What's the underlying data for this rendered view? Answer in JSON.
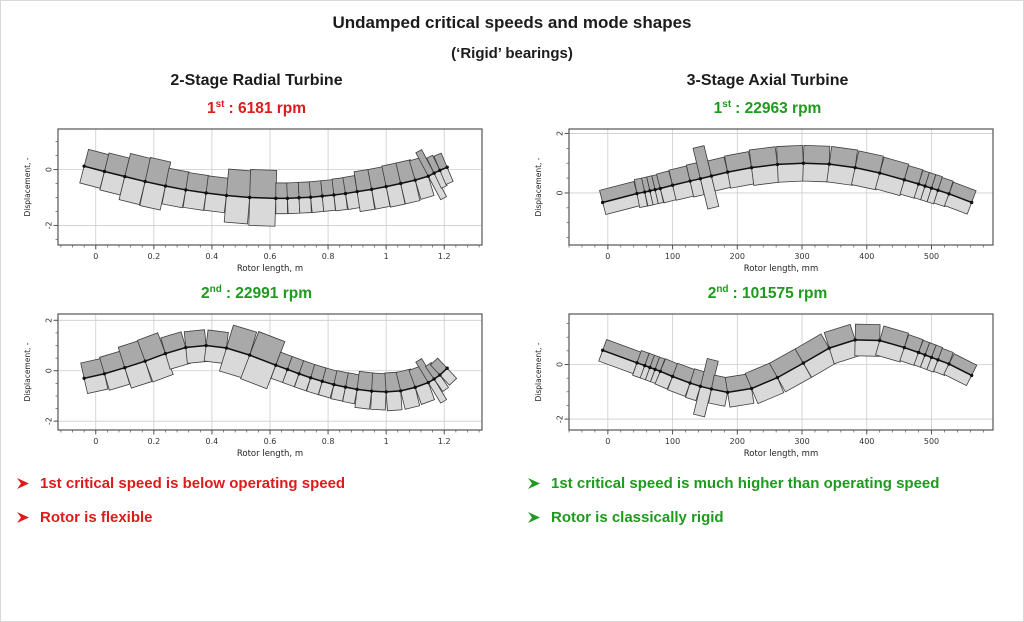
{
  "slide": {
    "title": "Undamped critical speeds and mode shapes",
    "subtitle": "(‘Rigid’ bearings)",
    "accent": {
      "red": "#DE1B1B",
      "green": "#1E9A1E"
    },
    "columns": [
      {
        "heading": "2-Stage Radial Turbine",
        "modes": [
          {
            "ordinal": "1",
            "suffix": "st",
            "text": ": 6181 rpm",
            "color": "red"
          },
          {
            "ordinal": "2",
            "suffix": "nd",
            "text": ": 22991 rpm",
            "color": "green"
          }
        ],
        "bullets": [
          "1st critical speed is below operating speed",
          "Rotor is flexible"
        ],
        "bullets_color": "red"
      },
      {
        "heading": "3-Stage Axial Turbine",
        "modes": [
          {
            "ordinal": "1",
            "suffix": "st",
            "text": ": 22963 rpm",
            "color": "green"
          },
          {
            "ordinal": "2",
            "suffix": "nd",
            "text": ": 101575 rpm",
            "color": "green"
          }
        ],
        "bullets": [
          "1st critical speed is much higher than operating speed",
          "Rotor is classically rigid"
        ],
        "bullets_color": "green"
      }
    ]
  },
  "chart_theme": {
    "element_top": "#a9a9a9",
    "element_bottom": "#d9d9d9",
    "element_stroke": "#3c3c3c",
    "grid": "#cccccc",
    "frame": "#555555",
    "centerline": "#111111",
    "tick_text": "#333333"
  },
  "chart_data": [
    {
      "id": "radial-mode-1",
      "type": "line",
      "rotor": "2-Stage Radial Turbine",
      "mode": 1,
      "critical_speed_rpm": 6181,
      "xlabel": "Rotor length, m",
      "ylabel": "Displacement, -",
      "xlim": [
        -0.13,
        1.33
      ],
      "ylim": [
        -2.7,
        1.45
      ],
      "xticks": [
        0,
        0.2,
        0.4,
        0.6,
        0.8,
        1,
        1.2
      ],
      "xtick_labels": [
        "0",
        "0.2",
        "0.4",
        "0.6",
        "0.8",
        "1",
        "1.2"
      ],
      "yticks": [
        0,
        -2
      ],
      "ytick_labels": [
        "0",
        "-2"
      ],
      "x_minor_step": 0.04,
      "y_minor_step": 0.5,
      "stations": [
        -0.04,
        0.03,
        0.1,
        0.17,
        0.24,
        0.31,
        0.38,
        0.45,
        0.53,
        0.62,
        0.66,
        0.7,
        0.74,
        0.78,
        0.82,
        0.86,
        0.9,
        0.95,
        1.0,
        1.05,
        1.1,
        1.145,
        1.165,
        1.185,
        1.21
      ],
      "displacement": [
        0.12,
        -0.07,
        -0.25,
        -0.43,
        -0.59,
        -0.73,
        -0.84,
        -0.93,
        -1.0,
        -1.03,
        -1.03,
        -1.01,
        -0.99,
        -0.95,
        -0.91,
        -0.86,
        -0.79,
        -0.71,
        -0.61,
        -0.5,
        -0.38,
        -0.24,
        -0.13,
        -0.03,
        0.08
      ],
      "element_radii": [
        0.62,
        0.68,
        0.85,
        0.88,
        0.65,
        0.63,
        0.62,
        0.95,
        1.0,
        0.55,
        0.55,
        0.55,
        0.55,
        0.55,
        0.57,
        0.58,
        0.72,
        0.72,
        0.75,
        0.75,
        0.72,
        0.95,
        0.6,
        0.55
      ]
    },
    {
      "id": "radial-mode-2",
      "type": "line",
      "rotor": "2-Stage Radial Turbine",
      "mode": 2,
      "critical_speed_rpm": 22991,
      "xlabel": "Rotor length, m",
      "ylabel": "Displacement, -",
      "xlim": [
        -0.13,
        1.33
      ],
      "ylim": [
        -2.35,
        2.25
      ],
      "xticks": [
        0,
        0.2,
        0.4,
        0.6,
        0.8,
        1,
        1.2
      ],
      "xtick_labels": [
        "0",
        "0.2",
        "0.4",
        "0.6",
        "0.8",
        "1",
        "1.2"
      ],
      "yticks": [
        2,
        0,
        -2
      ],
      "ytick_labels": [
        "2",
        "0",
        "-2"
      ],
      "x_minor_step": 0.04,
      "y_minor_step": 0.5,
      "stations": [
        -0.04,
        0.03,
        0.1,
        0.17,
        0.24,
        0.31,
        0.38,
        0.45,
        0.53,
        0.62,
        0.66,
        0.7,
        0.74,
        0.78,
        0.82,
        0.86,
        0.9,
        0.95,
        1.0,
        1.05,
        1.1,
        1.145,
        1.165,
        1.185,
        1.21
      ],
      "displacement": [
        -0.3,
        -0.12,
        0.12,
        0.38,
        0.68,
        0.92,
        1.0,
        0.9,
        0.62,
        0.22,
        0.05,
        -0.12,
        -0.28,
        -0.42,
        -0.55,
        -0.65,
        -0.74,
        -0.81,
        -0.84,
        -0.8,
        -0.66,
        -0.47,
        -0.33,
        -0.17,
        0.1
      ],
      "element_radii": [
        0.62,
        0.68,
        0.85,
        0.88,
        0.65,
        0.63,
        0.62,
        0.95,
        1.0,
        0.55,
        0.55,
        0.55,
        0.55,
        0.55,
        0.57,
        0.58,
        0.72,
        0.72,
        0.75,
        0.75,
        0.72,
        0.95,
        0.6,
        0.55
      ]
    },
    {
      "id": "axial-mode-1",
      "type": "line",
      "rotor": "3-Stage Axial Turbine",
      "mode": 1,
      "critical_speed_rpm": 22963,
      "xlabel": "Rotor length, mm",
      "ylabel": "Displacement, -",
      "xlim": [
        -60,
        595
      ],
      "ylim": [
        -1.75,
        2.15
      ],
      "xticks": [
        0,
        100,
        200,
        300,
        400,
        500
      ],
      "xtick_labels": [
        "0",
        "100",
        "200",
        "300",
        "400",
        "500"
      ],
      "yticks": [
        2,
        0
      ],
      "ytick_labels": [
        "2",
        "0"
      ],
      "x_minor_step": 20,
      "y_minor_step": 0.5,
      "stations": [
        -8,
        45,
        57,
        65,
        73,
        81,
        100,
        127,
        143,
        160,
        185,
        222,
        262,
        302,
        342,
        382,
        420,
        458,
        480,
        490,
        500,
        510,
        527,
        562
      ],
      "displacement": [
        -0.32,
        -0.02,
        0.03,
        0.07,
        0.11,
        0.15,
        0.26,
        0.4,
        0.48,
        0.57,
        0.7,
        0.85,
        0.96,
        1.0,
        0.97,
        0.85,
        0.67,
        0.44,
        0.3,
        0.23,
        0.16,
        0.09,
        -0.03,
        -0.32
      ],
      "element_radii": [
        0.42,
        0.48,
        0.48,
        0.48,
        0.48,
        0.5,
        0.52,
        0.55,
        1.05,
        0.52,
        0.55,
        0.6,
        0.6,
        0.6,
        0.6,
        0.58,
        0.55,
        0.5,
        0.48,
        0.48,
        0.48,
        0.45,
        0.42
      ]
    },
    {
      "id": "axial-mode-2",
      "type": "line",
      "rotor": "3-Stage Axial Turbine",
      "mode": 2,
      "critical_speed_rpm": 101575,
      "xlabel": "Rotor length, mm",
      "ylabel": "Displacement, -",
      "xlim": [
        -60,
        595
      ],
      "ylim": [
        -2.4,
        1.85
      ],
      "xticks": [
        0,
        100,
        200,
        300,
        400,
        500
      ],
      "xtick_labels": [
        "0",
        "100",
        "200",
        "300",
        "400",
        "500"
      ],
      "yticks": [
        0,
        -2
      ],
      "ytick_labels": [
        "0",
        "-2"
      ],
      "x_minor_step": 20,
      "y_minor_step": 0.5,
      "stations": [
        -8,
        45,
        57,
        65,
        73,
        81,
        100,
        127,
        143,
        160,
        185,
        222,
        262,
        302,
        342,
        382,
        420,
        458,
        480,
        490,
        500,
        510,
        527,
        562
      ],
      "displacement": [
        0.52,
        0.06,
        -0.04,
        -0.11,
        -0.18,
        -0.25,
        -0.44,
        -0.68,
        -0.8,
        -0.9,
        -1.02,
        -0.88,
        -0.48,
        0.05,
        0.6,
        0.9,
        0.88,
        0.62,
        0.44,
        0.35,
        0.26,
        0.17,
        0.02,
        -0.4
      ],
      "element_radii": [
        0.42,
        0.48,
        0.48,
        0.48,
        0.48,
        0.5,
        0.52,
        0.55,
        1.05,
        0.52,
        0.55,
        0.6,
        0.6,
        0.6,
        0.6,
        0.58,
        0.55,
        0.5,
        0.48,
        0.48,
        0.48,
        0.45,
        0.42
      ]
    }
  ]
}
